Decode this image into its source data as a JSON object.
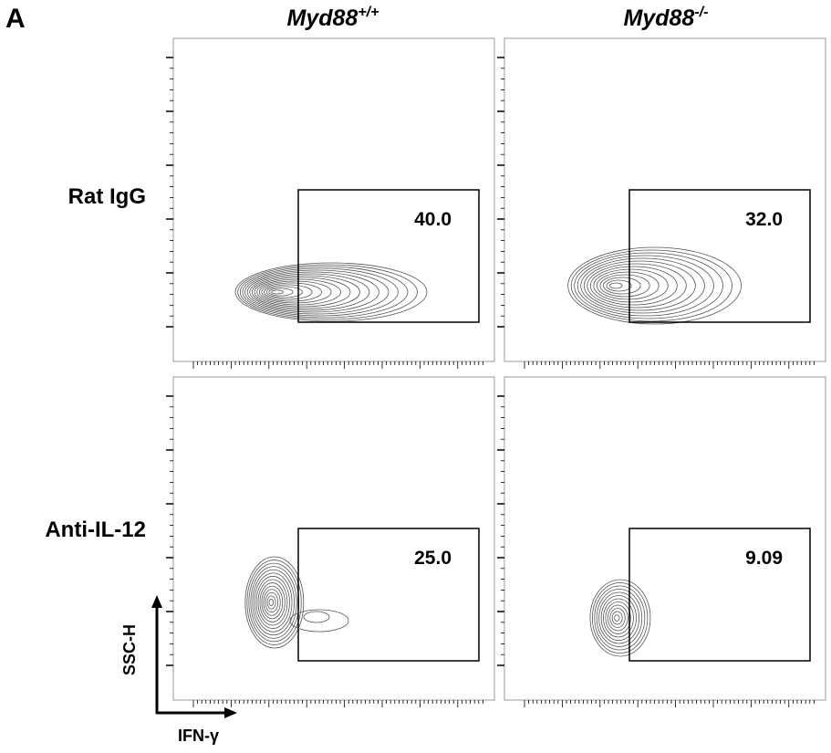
{
  "panel_label": "A",
  "columns": [
    {
      "name": "Myd88",
      "sup": "+/+"
    },
    {
      "name": "Myd88",
      "sup": "-/-"
    }
  ],
  "rows": [
    "Rat IgG",
    "Anti-IL-12"
  ],
  "gates": [
    [
      "40.0",
      "32.0"
    ],
    [
      "25.0",
      "9.09"
    ]
  ],
  "y_axis_label": "SSC-H",
  "x_axis_label": "IFN-γ"
}
